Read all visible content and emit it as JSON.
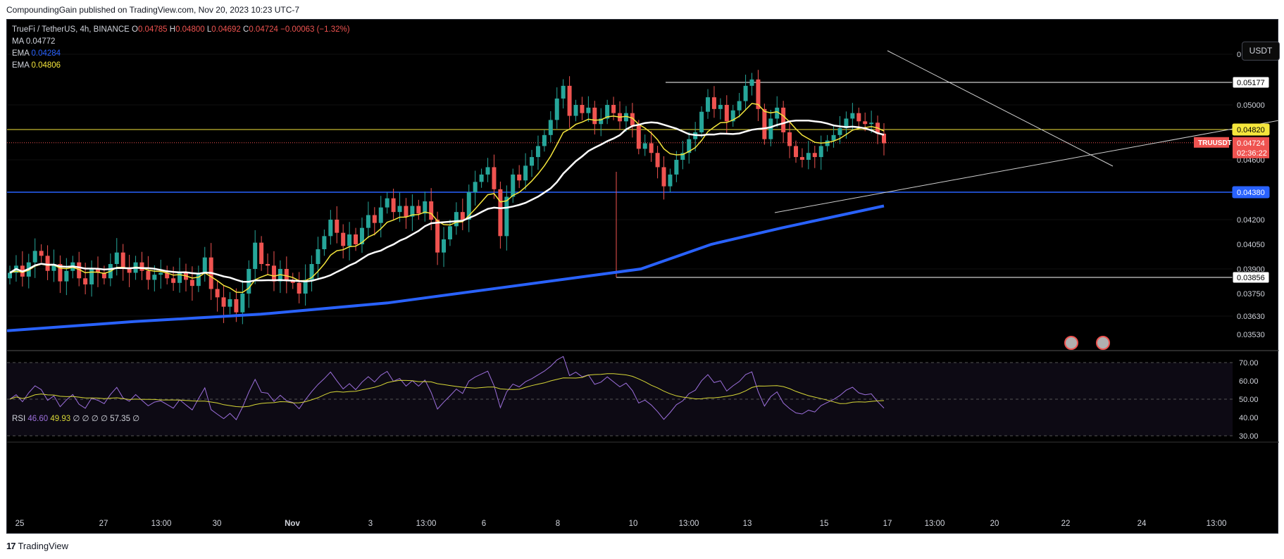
{
  "header": {
    "published": "CompoundingGain published on TradingView.com, Nov 20, 2023 10:23 UTC-7"
  },
  "legend": {
    "symbol": "TrueFi / TetherUS, 4h, BINANCE",
    "o_label": "O",
    "o_value": "0.04785",
    "h_label": "H",
    "h_value": "0.04800",
    "l_label": "L",
    "l_value": "0.04692",
    "c_label": "C",
    "c_value": "0.04724",
    "change": "−0.00063 (−1.32%)",
    "ma_label": "MA",
    "ma_value": "0.04772",
    "ema1_label": "EMA",
    "ema1_value": "0.04284",
    "ema2_label": "EMA",
    "ema2_value": "0.04806"
  },
  "currency_button": "USDT",
  "rsi_legend": {
    "label": "RSI",
    "v1": "46.60",
    "v2": "49.93",
    "rest": "∅ ∅ ∅ ∅ 57.35 ∅"
  },
  "footer": {
    "brand": "TradingView"
  },
  "colors": {
    "up": "#26a69a",
    "down": "#ef5350",
    "ma": "#ffffff",
    "ema_fast": "#f5e63c",
    "ema_slow": "#2962ff",
    "rsi": "#9c6fdc",
    "rsi_ma": "#d7d736",
    "level_yellow": "#f5e63c",
    "level_blue": "#2962ff",
    "price_tag": "#ef5350"
  },
  "chart_data": {
    "type": "candlestick",
    "symbol": "TRUUSDT",
    "interval": "4h",
    "x_tick_labels": [
      "25",
      "27",
      "13:00",
      "30",
      "Nov",
      "3",
      "13:00",
      "6",
      "8",
      "10",
      "13:00",
      "13",
      "15",
      "17",
      "13:00",
      "20",
      "22",
      "24",
      "13:00"
    ],
    "y_tick_labels": [
      "0.05400",
      "0.05000",
      "0.04600",
      "0.04200",
      "0.04050",
      "0.03900",
      "0.03750",
      "0.03630",
      "0.03530"
    ],
    "price_range_labels": [
      "0.05177",
      "0.04820",
      "0.04380",
      "0.03856"
    ],
    "current_price": {
      "symbol_tag": "TRUUSDT",
      "value": "0.04724",
      "countdown": "02:36:22"
    },
    "horizontal_levels": [
      {
        "value": 0.05177,
        "label": "0.05177",
        "color": "#ffffff"
      },
      {
        "value": 0.0482,
        "label": "0.04820",
        "color": "#f5e63c"
      },
      {
        "value": 0.0438,
        "label": "0.04380",
        "color": "#2962ff"
      },
      {
        "value": 0.03856,
        "label": "0.03856",
        "color": "#ffffff"
      }
    ],
    "closes": [
      0.0388,
      0.0392,
      0.0386,
      0.0394,
      0.0401,
      0.0398,
      0.0389,
      0.0393,
      0.0383,
      0.0389,
      0.0394,
      0.0385,
      0.0381,
      0.039,
      0.0388,
      0.0385,
      0.0393,
      0.04,
      0.0391,
      0.0388,
      0.0394,
      0.0389,
      0.0384,
      0.0387,
      0.0388,
      0.0385,
      0.0382,
      0.0388,
      0.0384,
      0.038,
      0.0388,
      0.0397,
      0.0378,
      0.0373,
      0.0368,
      0.0372,
      0.0365,
      0.0375,
      0.039,
      0.0406,
      0.0393,
      0.0392,
      0.0383,
      0.039,
      0.0384,
      0.0382,
      0.0375,
      0.0384,
      0.0393,
      0.0402,
      0.041,
      0.042,
      0.0412,
      0.0404,
      0.0411,
      0.0405,
      0.0415,
      0.0423,
      0.0418,
      0.0428,
      0.0434,
      0.0425,
      0.0429,
      0.0422,
      0.0429,
      0.0424,
      0.0432,
      0.042,
      0.04,
      0.0408,
      0.0416,
      0.0425,
      0.042,
      0.0438,
      0.0445,
      0.045,
      0.0455,
      0.044,
      0.041,
      0.0435,
      0.045,
      0.0446,
      0.0456,
      0.0462,
      0.047,
      0.0478,
      0.0489,
      0.0505,
      0.0515,
      0.0492,
      0.05,
      0.0494,
      0.0498,
      0.0486,
      0.049,
      0.05,
      0.0494,
      0.0488,
      0.0494,
      0.0485,
      0.0468,
      0.0472,
      0.0465,
      0.0455,
      0.0442,
      0.045,
      0.046,
      0.0465,
      0.0475,
      0.048,
      0.0495,
      0.0506,
      0.0497,
      0.05,
      0.0488,
      0.0496,
      0.0503,
      0.0515,
      0.052,
      0.0497,
      0.0475,
      0.049,
      0.0498,
      0.048,
      0.047,
      0.0462,
      0.046,
      0.0465,
      0.0462,
      0.047,
      0.0474,
      0.0478,
      0.0483,
      0.049,
      0.0494,
      0.0488,
      0.0486,
      0.0487,
      0.0479,
      0.0472
    ]
  }
}
